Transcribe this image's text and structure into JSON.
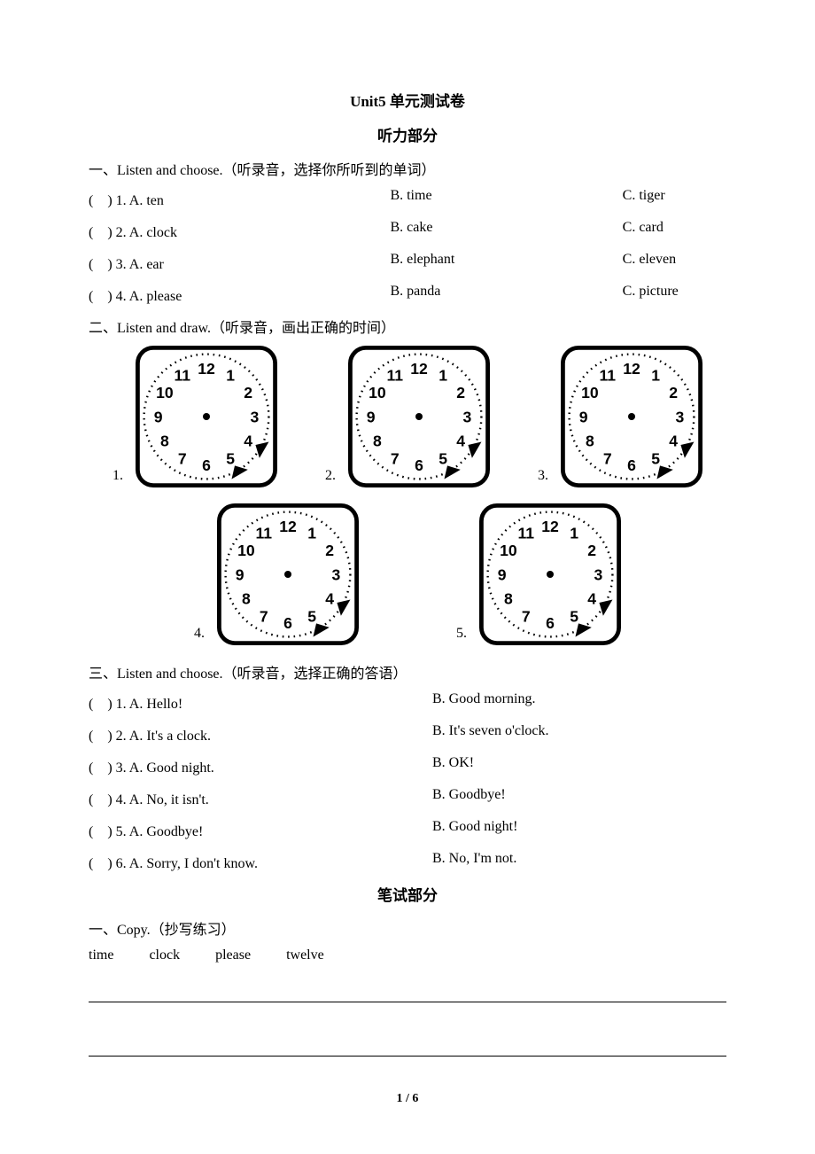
{
  "page": {
    "title": "Unit5 单元测试卷",
    "section_listening": "听力部分",
    "section_written": "笔试部分",
    "footer": "1 / 6"
  },
  "listening": {
    "part1_heading": "一、Listen and choose.（听录音，选择你所听到的单词）",
    "part1_items": [
      {
        "a": "(　) 1. A. ten",
        "b": "B. time",
        "c": "C. tiger"
      },
      {
        "a": "(　) 2. A. clock",
        "b": "B. cake",
        "c": "C. card"
      },
      {
        "a": "(　) 3. A. ear",
        "b": "B. elephant",
        "c": "C. eleven"
      },
      {
        "a": "(　) 4. A. please",
        "b": "B. panda",
        "c": "C. picture"
      }
    ],
    "part2_heading": "二、Listen and draw.（听录音，画出正确的时间）",
    "part2_clocks": [
      "1.",
      "2.",
      "3.",
      "4.",
      "5."
    ],
    "part3_heading": "三、Listen and choose.（听录音，选择正确的答语）",
    "part3_items": [
      {
        "a": "(　) 1. A. Hello!",
        "b": "B. Good morning."
      },
      {
        "a": "(　) 2. A. It's a clock.",
        "b": "B. It's seven o'clock."
      },
      {
        "a": "(　) 3. A. Good night.",
        "b": "B. OK!"
      },
      {
        "a": "(　) 4. A. No, it isn't.",
        "b": "B. Goodbye!"
      },
      {
        "a": "(　) 5. A. Goodbye!",
        "b": "B. Good night!"
      },
      {
        "a": "(　) 6. A. Sorry, I don't know.",
        "b": "B. No, I'm not."
      }
    ]
  },
  "written": {
    "part1_heading": "一、Copy.（抄写练习）",
    "copy_words": [
      "time",
      "clock",
      "please",
      "twelve"
    ]
  },
  "clock_style": {
    "face_color": "#ffffff",
    "border_color": "#000000",
    "tick_color": "#000000",
    "number_color": "#000000",
    "center_dot_color": "#000000",
    "font_family": "Arial, sans-serif",
    "number_fontsize": 22,
    "numbers": [
      "12",
      "1",
      "2",
      "3",
      "4",
      "5",
      "6",
      "7",
      "8",
      "9",
      "10",
      "11"
    ],
    "dark_5_triangle": "#000000",
    "dark_4_triangle": "#000000"
  }
}
